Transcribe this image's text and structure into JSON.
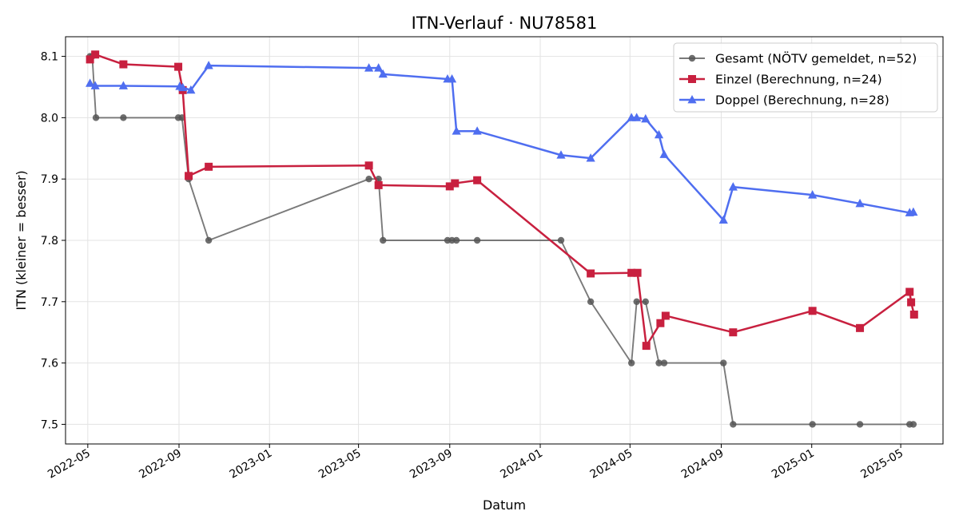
{
  "chart_data": {
    "type": "line",
    "title": "ITN-Verlauf · NU78581",
    "xlabel": "Datum",
    "ylabel": "ITN  (kleiner = besser)",
    "x_axis": "date",
    "xlim": [
      "2022-04-01",
      "2025-06-27"
    ],
    "ylim": [
      7.468,
      8.132
    ],
    "x_ticks": [
      "2022-05",
      "2022-09",
      "2023-01",
      "2023-05",
      "2023-09",
      "2024-01",
      "2024-05",
      "2024-09",
      "2025-01",
      "2025-05"
    ],
    "y_ticks": [
      "7.5",
      "7.6",
      "7.7",
      "7.8",
      "7.9",
      "8.0",
      "8.1"
    ],
    "grid": true,
    "legend_position": "top-right",
    "series": [
      {
        "name": "Gesamt (NÖTV gemeldet, n=52)",
        "color": "#555555",
        "marker": "circle",
        "points": [
          {
            "x": "2022-05-04",
            "y": 8.1
          },
          {
            "x": "2022-05-07",
            "y": 8.1
          },
          {
            "x": "2022-05-12",
            "y": 8.0
          },
          {
            "x": "2022-06-18",
            "y": 8.0
          },
          {
            "x": "2022-08-31",
            "y": 8.0
          },
          {
            "x": "2022-09-05",
            "y": 8.0
          },
          {
            "x": "2022-09-14",
            "y": 7.9
          },
          {
            "x": "2022-10-11",
            "y": 7.8
          },
          {
            "x": "2023-05-15",
            "y": 7.9
          },
          {
            "x": "2023-05-28",
            "y": 7.9
          },
          {
            "x": "2023-06-03",
            "y": 7.8
          },
          {
            "x": "2023-08-29",
            "y": 7.8
          },
          {
            "x": "2023-09-04",
            "y": 7.8
          },
          {
            "x": "2023-09-10",
            "y": 7.8
          },
          {
            "x": "2023-10-08",
            "y": 7.8
          },
          {
            "x": "2024-01-29",
            "y": 7.8
          },
          {
            "x": "2024-03-09",
            "y": 7.7
          },
          {
            "x": "2024-05-03",
            "y": 7.6
          },
          {
            "x": "2024-05-10",
            "y": 7.7
          },
          {
            "x": "2024-05-22",
            "y": 7.7
          },
          {
            "x": "2024-06-09",
            "y": 7.6
          },
          {
            "x": "2024-06-16",
            "y": 7.6
          },
          {
            "x": "2024-09-04",
            "y": 7.6
          },
          {
            "x": "2024-09-17",
            "y": 7.5
          },
          {
            "x": "2025-01-02",
            "y": 7.5
          },
          {
            "x": "2025-03-07",
            "y": 7.5
          },
          {
            "x": "2025-05-13",
            "y": 7.5
          },
          {
            "x": "2025-05-18",
            "y": 7.5
          }
        ]
      },
      {
        "name": "Einzel (Berechnung, n=24)",
        "color": "#c8203f",
        "marker": "square",
        "points": [
          {
            "x": "2022-05-04",
            "y": 8.095
          },
          {
            "x": "2022-05-11",
            "y": 8.103
          },
          {
            "x": "2022-06-18",
            "y": 8.087
          },
          {
            "x": "2022-08-31",
            "y": 8.083
          },
          {
            "x": "2022-09-06",
            "y": 8.045
          },
          {
            "x": "2022-09-14",
            "y": 7.905
          },
          {
            "x": "2022-10-11",
            "y": 7.92
          },
          {
            "x": "2023-05-15",
            "y": 7.922
          },
          {
            "x": "2023-05-28",
            "y": 7.89
          },
          {
            "x": "2023-09-01",
            "y": 7.888
          },
          {
            "x": "2023-09-08",
            "y": 7.893
          },
          {
            "x": "2023-10-08",
            "y": 7.898
          },
          {
            "x": "2024-03-09",
            "y": 7.746
          },
          {
            "x": "2024-05-03",
            "y": 7.747
          },
          {
            "x": "2024-05-11",
            "y": 7.747
          },
          {
            "x": "2024-05-23",
            "y": 7.628
          },
          {
            "x": "2024-06-11",
            "y": 7.665
          },
          {
            "x": "2024-06-18",
            "y": 7.677
          },
          {
            "x": "2024-09-17",
            "y": 7.65
          },
          {
            "x": "2025-01-02",
            "y": 7.685
          },
          {
            "x": "2025-03-07",
            "y": 7.657
          },
          {
            "x": "2025-05-13",
            "y": 7.716
          },
          {
            "x": "2025-05-15",
            "y": 7.699
          },
          {
            "x": "2025-05-19",
            "y": 7.679
          }
        ]
      },
      {
        "name": "Doppel (Berechnung, n=28)",
        "color": "#4f6ef0",
        "marker": "triangle",
        "points": [
          {
            "x": "2022-05-04",
            "y": 8.056
          },
          {
            "x": "2022-05-11",
            "y": 8.052
          },
          {
            "x": "2022-06-18",
            "y": 8.052
          },
          {
            "x": "2022-09-02",
            "y": 8.051
          },
          {
            "x": "2022-09-06",
            "y": 8.049
          },
          {
            "x": "2022-09-17",
            "y": 8.045
          },
          {
            "x": "2022-10-11",
            "y": 8.085
          },
          {
            "x": "2023-05-15",
            "y": 8.081
          },
          {
            "x": "2023-05-28",
            "y": 8.081
          },
          {
            "x": "2023-06-03",
            "y": 8.071
          },
          {
            "x": "2023-08-29",
            "y": 8.063
          },
          {
            "x": "2023-09-04",
            "y": 8.063
          },
          {
            "x": "2023-09-10",
            "y": 7.978
          },
          {
            "x": "2023-10-08",
            "y": 7.978
          },
          {
            "x": "2024-01-29",
            "y": 7.939
          },
          {
            "x": "2024-03-09",
            "y": 7.934
          },
          {
            "x": "2024-05-03",
            "y": 8.0
          },
          {
            "x": "2024-05-10",
            "y": 8.0
          },
          {
            "x": "2024-05-22",
            "y": 7.998
          },
          {
            "x": "2024-06-09",
            "y": 7.972
          },
          {
            "x": "2024-06-16",
            "y": 7.94
          },
          {
            "x": "2024-09-04",
            "y": 7.833
          },
          {
            "x": "2024-09-17",
            "y": 7.887
          },
          {
            "x": "2025-01-02",
            "y": 7.874
          },
          {
            "x": "2025-03-07",
            "y": 7.86
          },
          {
            "x": "2025-05-13",
            "y": 7.845
          },
          {
            "x": "2025-05-18",
            "y": 7.846
          }
        ]
      }
    ]
  }
}
